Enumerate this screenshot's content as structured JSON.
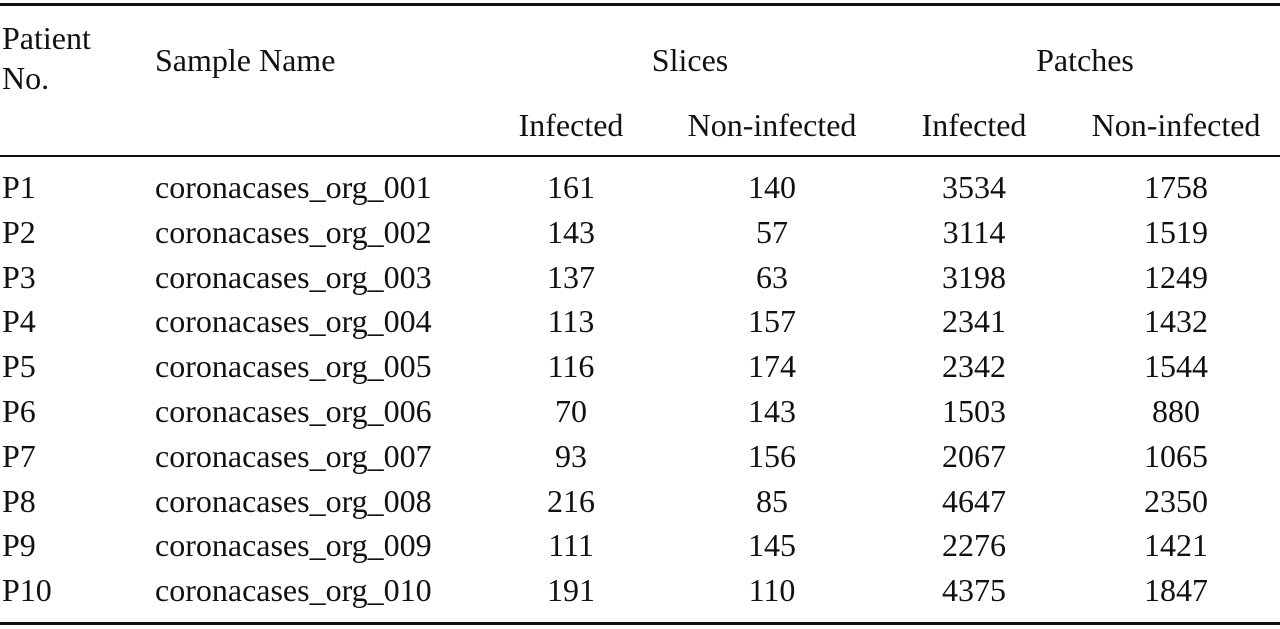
{
  "table": {
    "header": {
      "columns": [
        "Patient No.",
        "Sample Name",
        "Slices",
        "Patches"
      ],
      "subcolumns": [
        "Infected",
        "Non-infected",
        "Infected",
        "Non-infected"
      ]
    },
    "rows": [
      [
        "P1",
        "coronacases_org_001",
        161,
        140,
        3534,
        1758
      ],
      [
        "P2",
        "coronacases_org_002",
        143,
        57,
        3114,
        1519
      ],
      [
        "P3",
        "coronacases_org_003",
        137,
        63,
        3198,
        1249
      ],
      [
        "P4",
        "coronacases_org_004",
        113,
        157,
        2341,
        1432
      ],
      [
        "P5",
        "coronacases_org_005",
        116,
        174,
        2342,
        1544
      ],
      [
        "P6",
        "coronacases_org_006",
        70,
        143,
        1503,
        880
      ],
      [
        "P7",
        "coronacases_org_007",
        93,
        156,
        2067,
        1065
      ],
      [
        "P8",
        "coronacases_org_008",
        216,
        85,
        4647,
        2350
      ],
      [
        "P9",
        "coronacases_org_009",
        111,
        145,
        2276,
        1421
      ],
      [
        "P10",
        "coronacases_org_010",
        191,
        110,
        4375,
        1847
      ]
    ]
  }
}
